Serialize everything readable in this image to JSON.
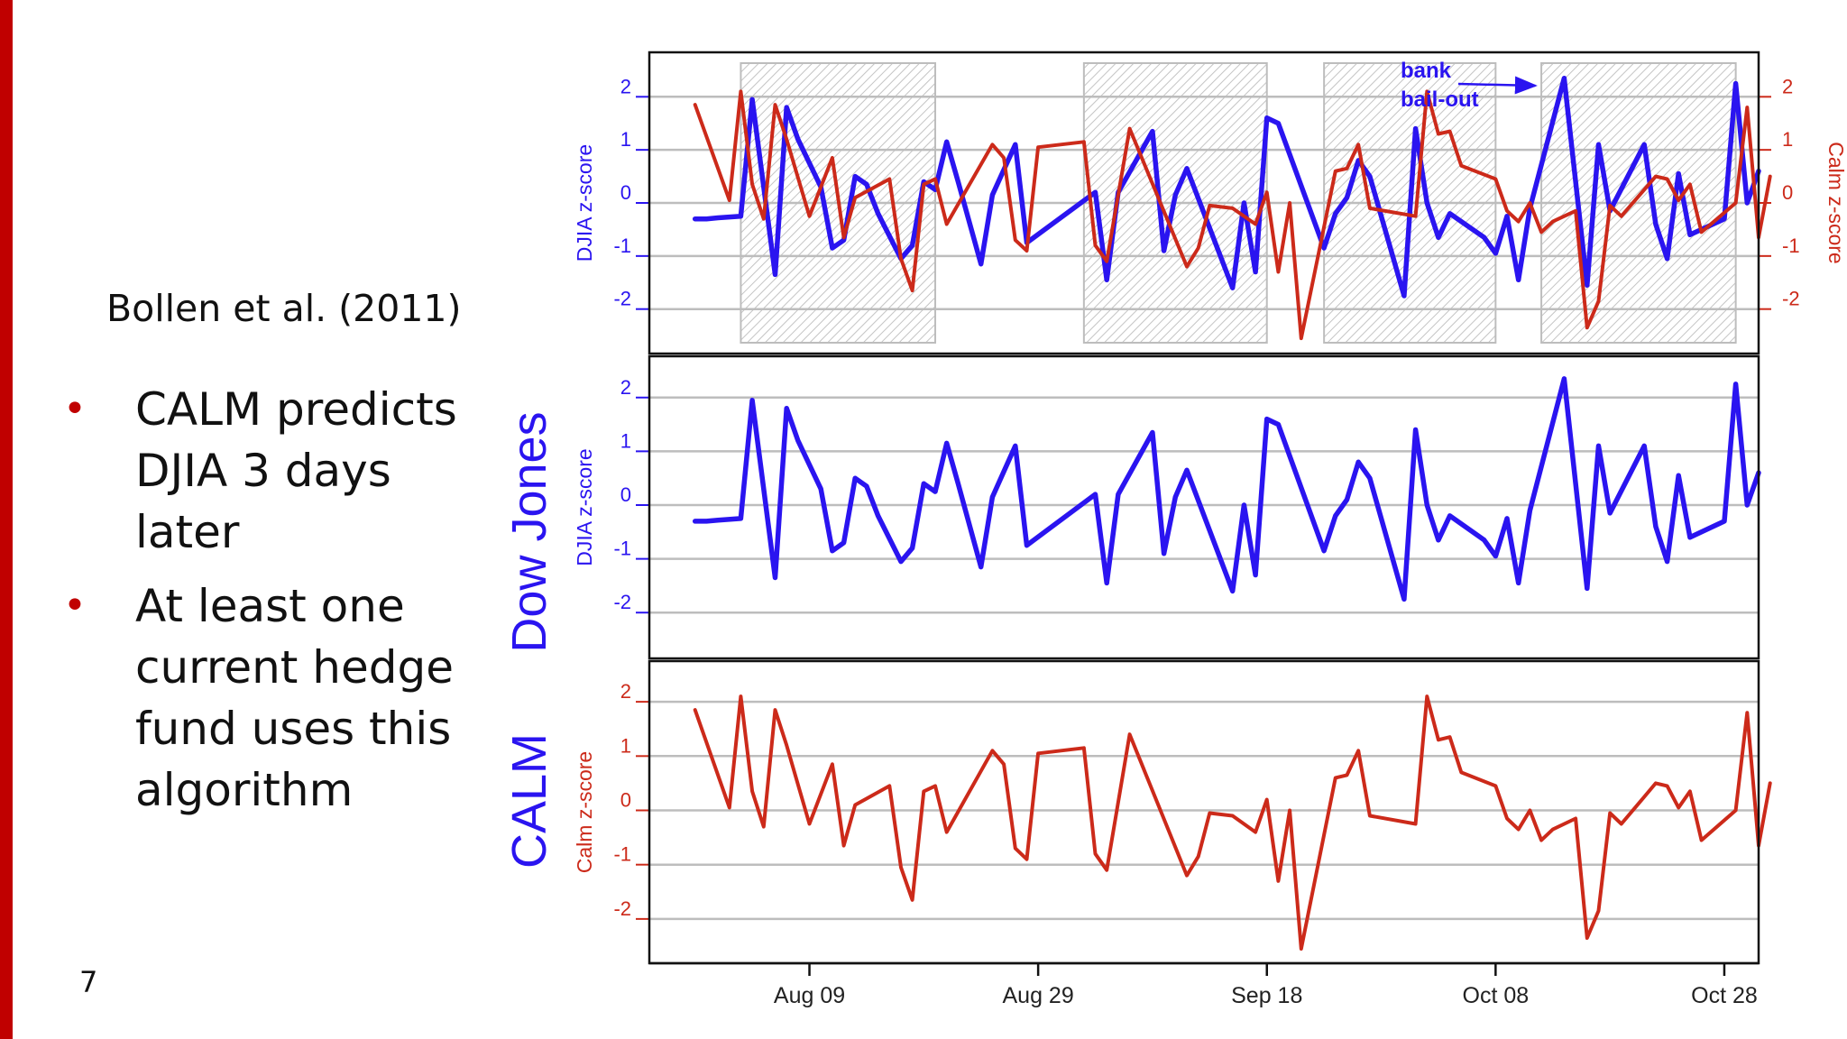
{
  "slide": {
    "citation": "Bollen et al. (2011)",
    "bullets": [
      "CALM predicts DJIA 3 days later",
      "At least one current hedge fund uses this algorithm"
    ],
    "slide_number": "7",
    "side_labels": {
      "dow": "Dow Jones",
      "calm": "CALM"
    }
  },
  "colors": {
    "accent": "#c00000",
    "djia": "#2a14f0",
    "calm": "#cc2a1a",
    "text": "#111111"
  },
  "chart_data": {
    "type": "line",
    "xlim": [
      "2008-07-26",
      "2008-10-31"
    ],
    "x_ticks": [
      {
        "date": "2008-08-09",
        "label": "Aug 09"
      },
      {
        "date": "2008-08-29",
        "label": "Aug 29"
      },
      {
        "date": "2008-09-18",
        "label": "Sep 18"
      },
      {
        "date": "2008-10-08",
        "label": "Oct 08"
      },
      {
        "date": "2008-10-28",
        "label": "Oct 28"
      }
    ],
    "ylim": [
      -2.6,
      2.6
    ],
    "y_ticks": [
      "-2",
      "-1",
      "0",
      "1",
      "2"
    ],
    "grid": true,
    "shaded_periods": [
      [
        "2008-08-03",
        "2008-08-20"
      ],
      [
        "2008-09-02",
        "2008-09-18"
      ],
      [
        "2008-09-23",
        "2008-10-08"
      ],
      [
        "2008-10-12",
        "2008-10-29"
      ]
    ],
    "annotation": {
      "line1": "bank",
      "line2": "bail-out",
      "date": "2008-10-11"
    },
    "panels": [
      {
        "name": "overlay",
        "series": [
          "djia",
          "calm"
        ],
        "ylabel_left": "DJIA z-score",
        "ylabel_right": "Calm z-score"
      },
      {
        "name": "dow",
        "series": [
          "djia"
        ],
        "ylabel_left": "DJIA z-score"
      },
      {
        "name": "calm",
        "series": [
          "calm"
        ],
        "ylabel_left": "Calm z-score"
      }
    ],
    "series": [
      {
        "id": "djia",
        "points": [
          [
            "2008-07-30",
            -0.3
          ],
          [
            "2008-07-31",
            -0.3
          ],
          [
            "2008-08-01",
            -0.28
          ],
          [
            "2008-08-03",
            -0.25
          ],
          [
            "2008-08-04",
            1.95
          ],
          [
            "2008-08-05",
            0.3
          ],
          [
            "2008-08-06",
            -1.35
          ],
          [
            "2008-08-07",
            1.8
          ],
          [
            "2008-08-08",
            1.2
          ],
          [
            "2008-08-10",
            0.3
          ],
          [
            "2008-08-11",
            -0.85
          ],
          [
            "2008-08-12",
            -0.7
          ],
          [
            "2008-08-13",
            0.5
          ],
          [
            "2008-08-14",
            0.35
          ],
          [
            "2008-08-15",
            -0.2
          ],
          [
            "2008-08-17",
            -1.05
          ],
          [
            "2008-08-18",
            -0.8
          ],
          [
            "2008-08-19",
            0.4
          ],
          [
            "2008-08-20",
            0.25
          ],
          [
            "2008-08-21",
            1.15
          ],
          [
            "2008-08-22",
            0.4
          ],
          [
            "2008-08-24",
            -1.15
          ],
          [
            "2008-08-25",
            0.15
          ],
          [
            "2008-08-27",
            1.1
          ],
          [
            "2008-08-28",
            -0.75
          ],
          [
            "2008-09-03",
            0.2
          ],
          [
            "2008-09-04",
            -1.45
          ],
          [
            "2008-09-05",
            0.2
          ],
          [
            "2008-09-08",
            1.35
          ],
          [
            "2008-09-09",
            -0.9
          ],
          [
            "2008-09-10",
            0.15
          ],
          [
            "2008-09-11",
            0.65
          ],
          [
            "2008-09-15",
            -1.6
          ],
          [
            "2008-09-16",
            0.0
          ],
          [
            "2008-09-17",
            -1.3
          ],
          [
            "2008-09-18",
            1.6
          ],
          [
            "2008-09-19",
            1.5
          ],
          [
            "2008-09-23",
            -0.85
          ],
          [
            "2008-09-24",
            -0.2
          ],
          [
            "2008-09-25",
            0.1
          ],
          [
            "2008-09-26",
            0.8
          ],
          [
            "2008-09-27",
            0.5
          ],
          [
            "2008-09-30",
            -1.75
          ],
          [
            "2008-10-01",
            1.4
          ],
          [
            "2008-10-02",
            0.0
          ],
          [
            "2008-10-03",
            -0.65
          ],
          [
            "2008-10-04",
            -0.2
          ],
          [
            "2008-10-07",
            -0.65
          ],
          [
            "2008-10-08",
            -0.95
          ],
          [
            "2008-10-09",
            -0.25
          ],
          [
            "2008-10-10",
            -1.45
          ],
          [
            "2008-10-11",
            -0.1
          ],
          [
            "2008-10-14",
            2.35
          ],
          [
            "2008-10-16",
            -1.55
          ],
          [
            "2008-10-17",
            1.1
          ],
          [
            "2008-10-18",
            -0.15
          ],
          [
            "2008-10-21",
            1.1
          ],
          [
            "2008-10-22",
            -0.4
          ],
          [
            "2008-10-23",
            -1.05
          ],
          [
            "2008-10-24",
            0.55
          ],
          [
            "2008-10-25",
            -0.6
          ],
          [
            "2008-10-28",
            -0.3
          ],
          [
            "2008-10-29",
            2.25
          ],
          [
            "2008-10-30",
            0.0
          ],
          [
            "2008-10-31",
            0.6
          ]
        ]
      },
      {
        "id": "calm",
        "points": [
          [
            "2008-07-30",
            1.85
          ],
          [
            "2008-08-02",
            0.05
          ],
          [
            "2008-08-03",
            2.1
          ],
          [
            "2008-08-04",
            0.35
          ],
          [
            "2008-08-05",
            -0.3
          ],
          [
            "2008-08-06",
            1.85
          ],
          [
            "2008-08-07",
            1.2
          ],
          [
            "2008-08-09",
            -0.25
          ],
          [
            "2008-08-11",
            0.85
          ],
          [
            "2008-08-12",
            -0.65
          ],
          [
            "2008-08-13",
            0.1
          ],
          [
            "2008-08-16",
            0.45
          ],
          [
            "2008-08-17",
            -1.05
          ],
          [
            "2008-08-18",
            -1.65
          ],
          [
            "2008-08-19",
            0.35
          ],
          [
            "2008-08-20",
            0.45
          ],
          [
            "2008-08-21",
            -0.4
          ],
          [
            "2008-08-25",
            1.1
          ],
          [
            "2008-08-26",
            0.85
          ],
          [
            "2008-08-27",
            -0.7
          ],
          [
            "2008-08-28",
            -0.9
          ],
          [
            "2008-08-29",
            1.05
          ],
          [
            "2008-09-02",
            1.15
          ],
          [
            "2008-09-03",
            -0.8
          ],
          [
            "2008-09-04",
            -1.1
          ],
          [
            "2008-09-06",
            1.4
          ],
          [
            "2008-09-11",
            -1.2
          ],
          [
            "2008-09-12",
            -0.85
          ],
          [
            "2008-09-13",
            -0.05
          ],
          [
            "2008-09-15",
            -0.1
          ],
          [
            "2008-09-17",
            -0.4
          ],
          [
            "2008-09-18",
            0.2
          ],
          [
            "2008-09-19",
            -1.3
          ],
          [
            "2008-09-20",
            0.0
          ],
          [
            "2008-09-21",
            -2.55
          ],
          [
            "2008-09-24",
            0.6
          ],
          [
            "2008-09-25",
            0.65
          ],
          [
            "2008-09-26",
            1.1
          ],
          [
            "2008-09-27",
            -0.1
          ],
          [
            "2008-10-01",
            -0.25
          ],
          [
            "2008-10-02",
            2.1
          ],
          [
            "2008-10-03",
            1.3
          ],
          [
            "2008-10-04",
            1.35
          ],
          [
            "2008-10-05",
            0.7
          ],
          [
            "2008-10-08",
            0.45
          ],
          [
            "2008-10-09",
            -0.15
          ],
          [
            "2008-10-10",
            -0.35
          ],
          [
            "2008-10-11",
            0.0
          ],
          [
            "2008-10-12",
            -0.55
          ],
          [
            "2008-10-13",
            -0.35
          ],
          [
            "2008-10-15",
            -0.15
          ],
          [
            "2008-10-16",
            -2.35
          ],
          [
            "2008-10-17",
            -1.85
          ],
          [
            "2008-10-18",
            -0.05
          ],
          [
            "2008-10-19",
            -0.25
          ],
          [
            "2008-10-21",
            0.25
          ],
          [
            "2008-10-22",
            0.5
          ],
          [
            "2008-10-23",
            0.45
          ],
          [
            "2008-10-24",
            0.05
          ],
          [
            "2008-10-25",
            0.35
          ],
          [
            "2008-10-26",
            -0.55
          ],
          [
            "2008-10-29",
            0.0
          ],
          [
            "2008-10-30",
            1.8
          ],
          [
            "2008-10-31",
            -0.65
          ],
          [
            "2008-11-01",
            0.5
          ]
        ]
      }
    ]
  }
}
